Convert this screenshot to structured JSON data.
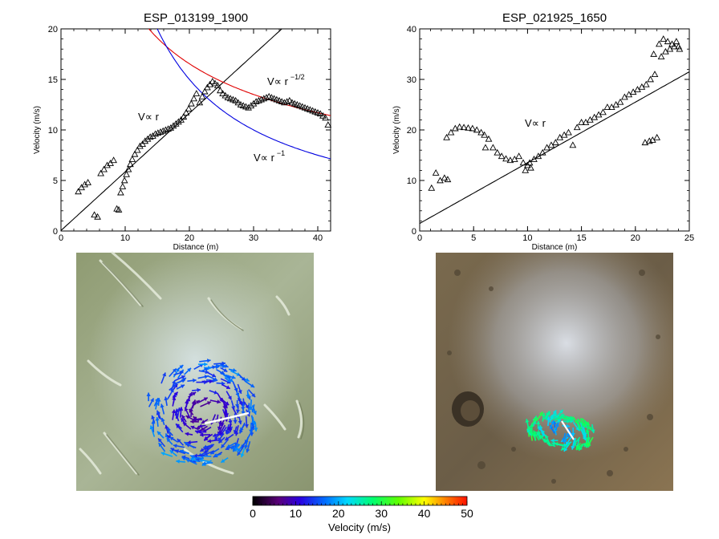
{
  "chart_data": [
    {
      "type": "scatter",
      "title": "ESP_013199_1900",
      "xlabel": "Distance (m)",
      "ylabel": "Velocity (m/s)",
      "xlim": [
        0,
        42
      ],
      "ylim": [
        0,
        20
      ],
      "xticks": [
        "0",
        "10",
        "20",
        "30",
        "40"
      ],
      "yticks": [
        "0",
        "5",
        "10",
        "15",
        "20"
      ],
      "marker": "open-triangle",
      "x": [
        2.7,
        3.2,
        3.7,
        4.2,
        5.2,
        5.7,
        6.2,
        6.7,
        7.2,
        7.7,
        8.2,
        8.7,
        9.0,
        9.3,
        9.6,
        9.9,
        10.2,
        10.5,
        10.8,
        11.1,
        11.5,
        11.9,
        12.3,
        12.7,
        13.1,
        13.5,
        13.9,
        14.3,
        14.7,
        15.1,
        15.5,
        15.9,
        16.3,
        16.7,
        17.1,
        17.5,
        17.9,
        18.3,
        18.7,
        19.1,
        19.5,
        19.9,
        20.3,
        20.7,
        21.1,
        21.6,
        22.0,
        22.4,
        22.8,
        23.2,
        23.6,
        24.0,
        24.4,
        24.8,
        25.2,
        25.6,
        26.0,
        26.4,
        26.8,
        27.2,
        27.6,
        28.0,
        28.4,
        28.8,
        29.2,
        29.6,
        30.0,
        30.4,
        30.8,
        31.2,
        31.6,
        32.0,
        32.4,
        32.8,
        33.2,
        33.6,
        34.0,
        34.4,
        34.8,
        35.2,
        35.6,
        36.0,
        36.4,
        36.8,
        37.2,
        37.6,
        38.0,
        38.4,
        38.8,
        39.2,
        39.6,
        40.0,
        40.4,
        40.8,
        41.2,
        41.6
      ],
      "y": [
        3.9,
        4.3,
        4.6,
        4.8,
        1.6,
        1.4,
        5.7,
        6.1,
        6.5,
        6.7,
        7.0,
        2.2,
        2.1,
        3.8,
        4.4,
        5.0,
        5.6,
        6.1,
        6.6,
        7.1,
        7.6,
        8.0,
        8.4,
        8.6,
        8.9,
        9.1,
        9.3,
        9.4,
        9.6,
        9.7,
        9.8,
        9.9,
        10.0,
        10.1,
        10.2,
        10.4,
        10.6,
        10.8,
        11.0,
        11.3,
        11.7,
        12.1,
        12.6,
        13.1,
        13.6,
        12.7,
        13.3,
        13.8,
        14.2,
        14.5,
        14.8,
        14.6,
        14.4,
        13.9,
        13.6,
        13.4,
        13.2,
        13.1,
        13.0,
        12.9,
        12.7,
        12.5,
        12.4,
        12.3,
        12.2,
        12.4,
        12.6,
        12.8,
        12.9,
        13.0,
        13.1,
        13.2,
        13.3,
        13.2,
        13.1,
        13.0,
        12.9,
        12.8,
        12.7,
        12.8,
        12.9,
        12.7,
        12.6,
        12.5,
        12.4,
        12.3,
        12.2,
        12.1,
        12.0,
        11.9,
        11.8,
        11.7,
        11.6,
        11.4,
        11.2,
        10.5
      ],
      "fits": [
        {
          "label": "V∝ r",
          "color": "#000000",
          "formula": "linear",
          "a": 0.58,
          "b": 0.05
        },
        {
          "label": "V∝ r",
          "sup": "−1/2",
          "color": "#e00000",
          "formula": "inv_sqrt",
          "a": 74.0
        },
        {
          "label": "V∝ r",
          "sup": "−1",
          "color": "#0000e0",
          "formula": "inv",
          "a": 300.0
        }
      ]
    },
    {
      "type": "scatter",
      "title": "ESP_021925_1650",
      "xlabel": "Distance (m)",
      "ylabel": "Velocity (m/s)",
      "xlim": [
        0,
        25
      ],
      "ylim": [
        0,
        40
      ],
      "xticks": [
        "0",
        "5",
        "10",
        "15",
        "20",
        "25"
      ],
      "yticks": [
        "0",
        "10",
        "20",
        "30",
        "40"
      ],
      "marker": "open-triangle",
      "x": [
        1.1,
        1.5,
        1.9,
        2.3,
        2.6,
        2.5,
        2.9,
        3.3,
        3.7,
        4.1,
        4.5,
        4.9,
        5.3,
        5.7,
        6.1,
        6.0,
        6.4,
        6.8,
        7.2,
        7.6,
        8.0,
        8.4,
        8.8,
        9.2,
        9.6,
        10.0,
        10.3,
        9.8,
        10.2,
        10.6,
        11.0,
        11.4,
        11.8,
        12.2,
        12.6,
        13.0,
        13.4,
        13.8,
        14.2,
        14.6,
        15.0,
        15.4,
        15.8,
        16.2,
        16.6,
        17.0,
        17.4,
        17.8,
        18.2,
        18.6,
        19.0,
        19.4,
        19.8,
        20.2,
        20.6,
        21.0,
        21.4,
        21.8,
        21.6,
        22.0,
        22.4,
        22.8,
        23.2,
        23.6,
        24.0,
        20.9,
        21.3,
        21.7,
        22.2,
        22.6,
        23.0,
        23.4,
        23.8,
        24.1
      ],
      "y": [
        8.5,
        11.5,
        10.0,
        10.5,
        10.2,
        18.5,
        19.5,
        20.3,
        20.6,
        20.5,
        20.4,
        20.3,
        20.0,
        19.5,
        16.5,
        19.0,
        18.2,
        16.5,
        15.5,
        14.8,
        14.3,
        14.0,
        14.2,
        14.8,
        13.5,
        13.0,
        12.5,
        12.0,
        13.5,
        14.2,
        14.8,
        15.5,
        16.5,
        17.0,
        17.5,
        18.5,
        19.0,
        19.5,
        17.0,
        20.5,
        21.5,
        21.5,
        22.0,
        22.5,
        23.0,
        23.5,
        24.5,
        24.5,
        25.0,
        25.5,
        26.5,
        27.0,
        27.5,
        28.0,
        28.5,
        29.0,
        30.0,
        31.0,
        18.0,
        18.5,
        34.5,
        35.5,
        36.0,
        36.5,
        36.5,
        17.5,
        17.8,
        35.0,
        37.0,
        38.0,
        37.5,
        37.0,
        37.5,
        36.0
      ],
      "fits": [
        {
          "label": "V∝ r",
          "color": "#000000",
          "formula": "linear",
          "a": 1.2,
          "b": 1.5
        }
      ]
    },
    {
      "type": "colorbar",
      "label": "Velocity (m/s)",
      "range": [
        0,
        50
      ],
      "ticks": [
        "0",
        "10",
        "20",
        "30",
        "40",
        "50"
      ]
    }
  ],
  "images": {
    "left_caption": "",
    "right_caption": ""
  },
  "colors": {
    "linear_fit": "#000000",
    "inv_sqrt_fit": "#e00000",
    "inv_fit": "#0000e0"
  }
}
